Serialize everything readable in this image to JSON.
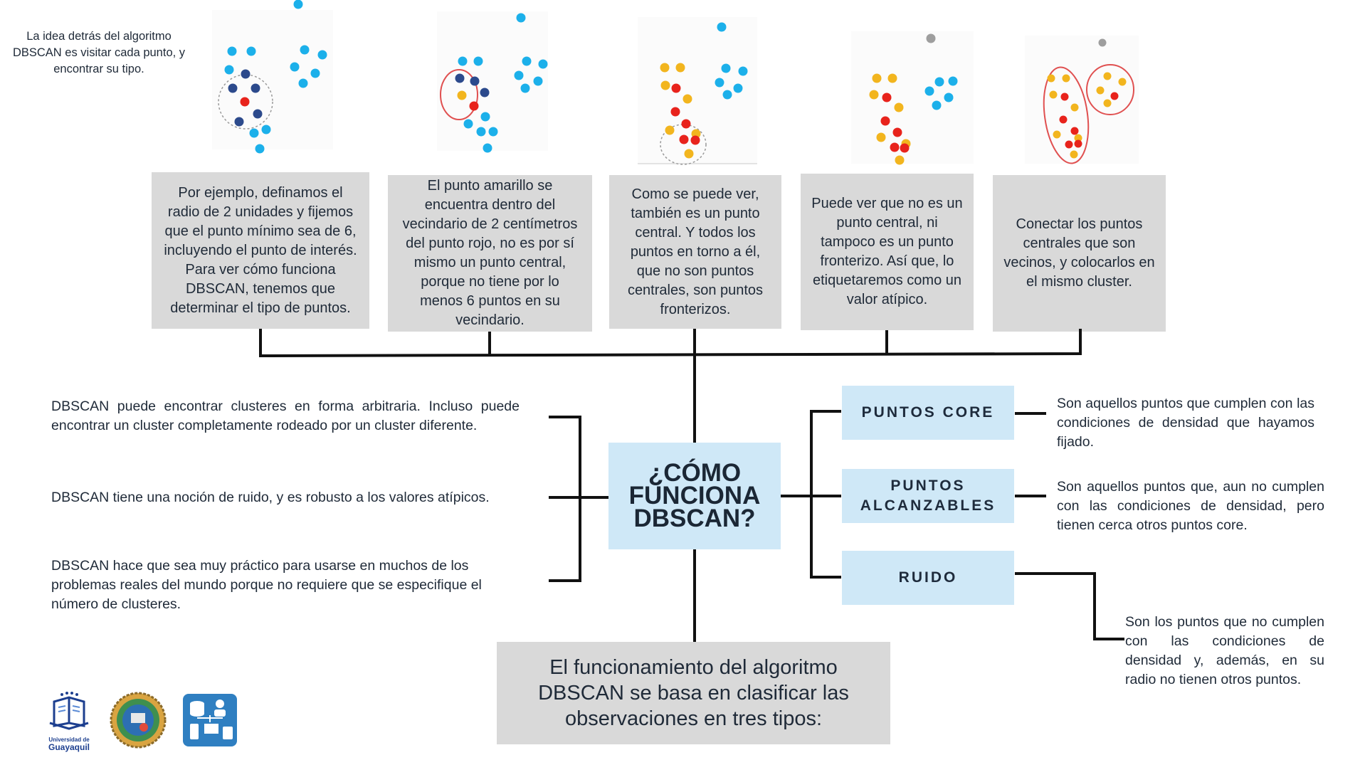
{
  "intro": "La idea detrás del algoritmo DBSCAN es visitar cada punto, y encontrar su tipo.",
  "steps": [
    "Por ejemplo, definamos el radio de 2 unidades y fijemos que el punto mínimo sea de 6, incluyendo el punto de interés. Para ver cómo funciona DBSCAN, tenemos que determinar el tipo de puntos.",
    "El punto amarillo se encuentra dentro del vecindario de 2 centímetros del punto rojo, no es por sí mismo un punto central, porque no tiene por lo menos 6 puntos en su vecindario.",
    "Como se puede ver, también es un punto central. Y todos los puntos en torno a él, que no son puntos centrales, son puntos fronterizos.",
    "Puede ver que no es un punto central, ni tampoco es un punto fronterizo. Así que, lo etiquetaremos como un valor atípico.",
    "Conectar los puntos centrales que son vecinos, y colocarlos en el mismo cluster."
  ],
  "title": "¿CÓMO FUNCIONA DBSCAN?",
  "advantages": [
    "DBSCAN puede encontrar clusteres en forma arbitraria. Incluso puede encontrar un cluster completamente rodeado por un cluster diferente.",
    "DBSCAN tiene una noción de ruido, y es robusto a los valores atípicos.",
    " DBSCAN hace que sea muy práctico para usarse en muchos de los problemas reales del mundo porque no requiere que se especifique el número de clusteres."
  ],
  "types": [
    {
      "label": "PUNTOS CORE",
      "desc": "Son aquellos puntos que cumplen con las condiciones de densidad que hayamos fijado."
    },
    {
      "label": "PUNTOS ALCANZABLES",
      "desc": "Son aquellos puntos que, aun no cumplen con las condiciones de densidad, pero tienen cerca otros puntos core."
    },
    {
      "label": "RUIDO",
      "desc": "Son los puntos que no cumplen con las condiciones de densidad y, además, en su radio no tienen otros puntos."
    }
  ],
  "bottom_text": "El funcionamiento del algoritmo DBSCAN se basa en clasificar las observaciones en tres tipos:",
  "logos": [
    {
      "name": "universidad-guayaquil-logo",
      "line1": "Universidad de",
      "line2": "Guayaquil"
    },
    {
      "name": "faculty-seal-logo"
    },
    {
      "name": "career-logo"
    }
  ],
  "colors": {
    "light_blue_point": "#1cb0ea",
    "dark_blue_point": "#2c4a8c",
    "red_point": "#e8231c",
    "yellow_point": "#f2b51e",
    "gray_point": "#9e9e9e",
    "circle": "#e05050",
    "gray_box": "#d9d9d9",
    "blue_box": "#cfe8f7"
  }
}
